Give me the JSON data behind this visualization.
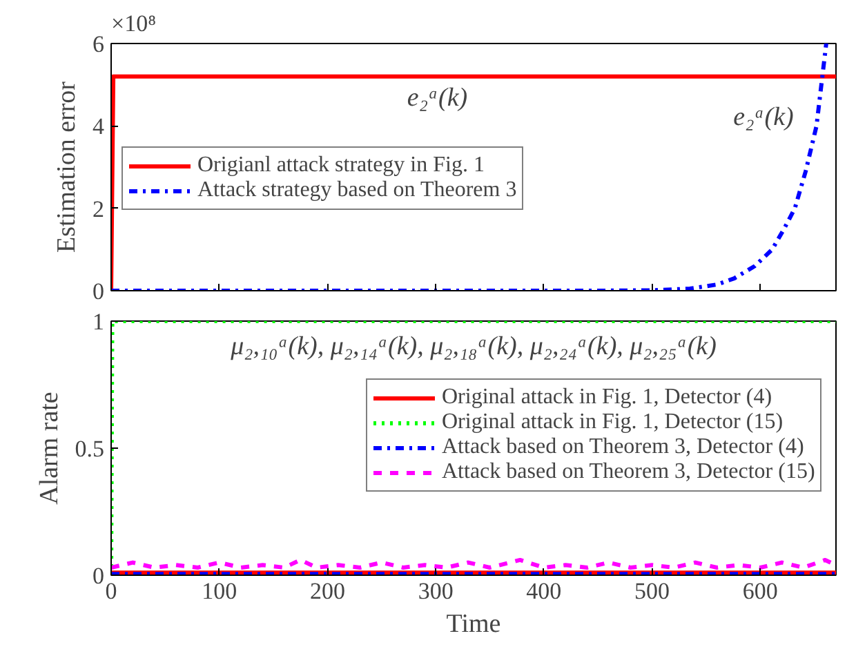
{
  "chart_data": [
    {
      "type": "line",
      "ylabel": "Estimation error",
      "xlim": [
        0,
        670
      ],
      "ylim": [
        0,
        6
      ],
      "xticks": [
        {
          "value": 0,
          "label": null
        },
        {
          "value": 100,
          "label": null
        },
        {
          "value": 200,
          "label": null
        },
        {
          "value": 300,
          "label": null
        },
        {
          "value": 400,
          "label": null
        },
        {
          "value": 500,
          "label": null
        },
        {
          "value": 600,
          "label": null
        }
      ],
      "yticks": [
        0,
        2,
        4,
        6
      ],
      "tick_labels": "y",
      "legend": "left",
      "grid": false,
      "annotations": [
        "×10⁸",
        "e₂ᵃ(k)",
        "e₂ᵃ(k)"
      ],
      "series": [
        {
          "name": "Origianl attack strategy in Fig. 1",
          "color": "#ff0000",
          "line_style": "solid",
          "x": [
            0,
            2,
            670
          ],
          "values": [
            0,
            5.2,
            5.2
          ]
        },
        {
          "name": "Attack strategy based on Theorem 3",
          "color": "#0000ff",
          "line_style": "dashdot",
          "x": [
            0,
            450,
            500,
            535,
            560,
            576,
            595,
            611,
            622,
            632,
            642,
            652,
            661
          ],
          "values": [
            0,
            0,
            0.01,
            0.05,
            0.15,
            0.3,
            0.6,
            1,
            1.5,
            2,
            2.9,
            4,
            6
          ]
        }
      ]
    },
    {
      "type": "line",
      "ylabel": "Alarm rate",
      "xlabel": "Time",
      "xlim": [
        0,
        670
      ],
      "ylim": [
        0,
        1
      ],
      "xticks": [
        0,
        100,
        200,
        300,
        400,
        500,
        600
      ],
      "yticks": [
        0,
        0.5,
        1
      ],
      "legend": "right",
      "grid": false,
      "annotations": [
        "μ₂,₁₀ᵃ(k), μ₂,₁₄ᵃ(k), μ₂,₁₈ᵃ(k), μ₂,₂₄ᵃ(k), μ₂,₂₅ᵃ(k)"
      ],
      "series": [
        {
          "name": "Original attack in Fig. 1, Detector (4)",
          "color": "#ff0000",
          "line_style": "solid",
          "x": [
            0,
            670
          ],
          "values": [
            0.01,
            0.01
          ]
        },
        {
          "name": "Original attack in Fig. 1, Detector (15)",
          "color": "#00ff00",
          "line_style": "dotted",
          "x": [
            0,
            1,
            670
          ],
          "values": [
            0,
            1,
            1
          ]
        },
        {
          "name": "Attack based on Theorem 3, Detector (4)",
          "color": "#0000ff",
          "line_style": "dashdot",
          "x": [
            0,
            670
          ],
          "values": [
            0.005,
            0.005
          ]
        },
        {
          "name": "Attack based on Theorem 3, Detector (15)",
          "color": "#ff00ff",
          "line_style": "dashed",
          "x": [
            0,
            20,
            40,
            60,
            80,
            100,
            120,
            140,
            160,
            175,
            190,
            210,
            230,
            250,
            270,
            290,
            310,
            330,
            350,
            378,
            400,
            420,
            440,
            460,
            480,
            500,
            520,
            540,
            560,
            580,
            600,
            620,
            640,
            660,
            670
          ],
          "values": [
            0.03,
            0.05,
            0.03,
            0.04,
            0.03,
            0.05,
            0.03,
            0.04,
            0.03,
            0.06,
            0.03,
            0.04,
            0.03,
            0.05,
            0.03,
            0.04,
            0.03,
            0.05,
            0.03,
            0.06,
            0.03,
            0.04,
            0.03,
            0.05,
            0.03,
            0.04,
            0.03,
            0.05,
            0.03,
            0.04,
            0.03,
            0.05,
            0.03,
            0.06,
            0.04
          ]
        }
      ]
    }
  ]
}
